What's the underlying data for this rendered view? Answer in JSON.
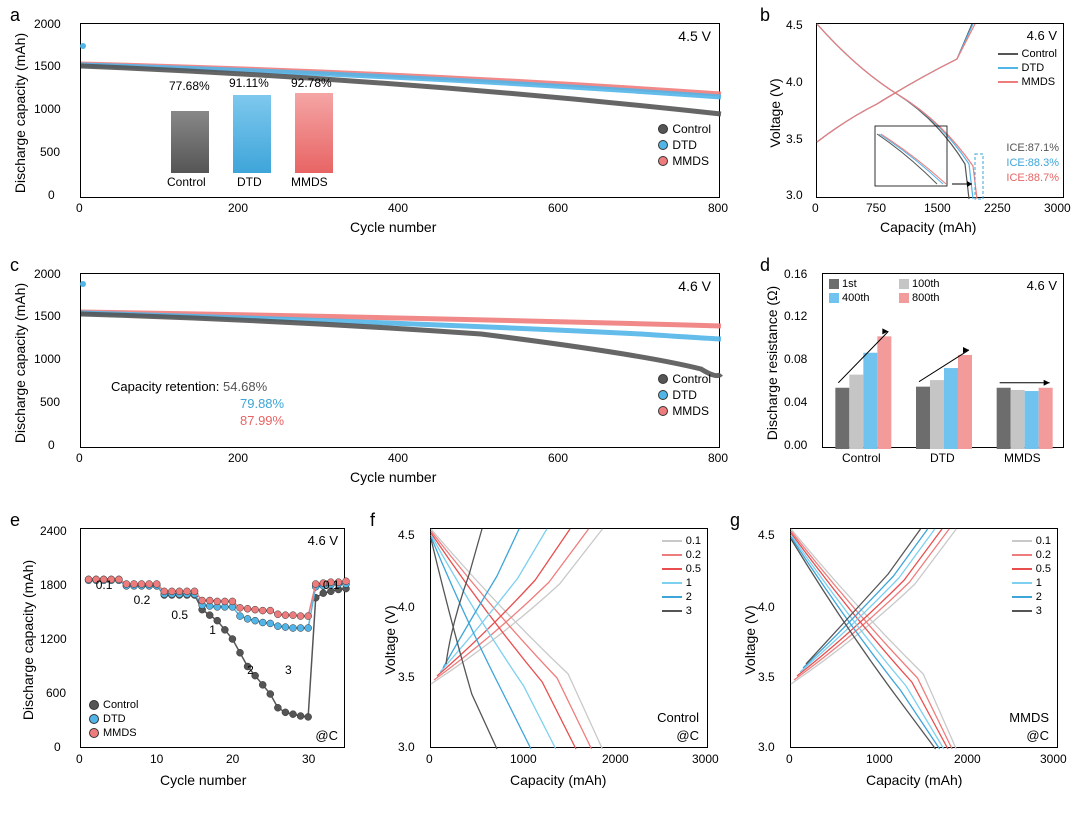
{
  "colors": {
    "control": "#555555",
    "dtd": "#52b5e8",
    "mmds": "#ef7c7c",
    "gray_bar": "#6d6d6d",
    "lightgray_bar": "#c5c5c5",
    "blue_bar": "#6fc3ee",
    "pink_bar": "#f39a9a",
    "axis": "#000000",
    "grid": "#e0e0e0",
    "bg": "#ffffff"
  },
  "panel_a": {
    "tag": "a",
    "ylabel": "Discharge capacity (mAh)",
    "xlabel": "Cycle number",
    "voltage_label": "4.5 V",
    "xlim": [
      0,
      800
    ],
    "ylim": [
      0,
      2000
    ],
    "xticks": [
      0,
      200,
      400,
      600,
      800
    ],
    "yticks": [
      0,
      500,
      1000,
      1500,
      2000
    ],
    "series": {
      "control_start": 1550,
      "control_end": 1205,
      "dtd_start": 1550,
      "dtd_end": 1420,
      "dtd_peak0": 1750,
      "mmds_start": 1550,
      "mmds_end": 1450
    },
    "inset_bars": {
      "categories": [
        "Control",
        "DTD",
        "MMDS"
      ],
      "values": [
        "77.68%",
        "91.11%",
        "92.78%"
      ],
      "heights": [
        77.68,
        91.11,
        92.78
      ],
      "colors": [
        "#6d6d6d",
        "#52b5e8",
        "#ef7c7c"
      ]
    },
    "legend": [
      "Control",
      "DTD",
      "MMDS"
    ]
  },
  "panel_b": {
    "tag": "b",
    "ylabel": "Voltage (V)",
    "xlabel": "Capacity (mAh)",
    "voltage_label": "4.6 V",
    "xlim": [
      0,
      3000
    ],
    "ylim": [
      3.0,
      4.5
    ],
    "xticks": [
      0,
      750,
      1500,
      2250,
      3000
    ],
    "yticks": [
      "3.0",
      "3.5",
      "4.0",
      "4.5"
    ],
    "legend": [
      "Control",
      "DTD",
      "MMDS"
    ],
    "ice": {
      "control": "ICE:87.1%",
      "dtd": "ICE:88.3%",
      "mmds": "ICE:88.7%"
    }
  },
  "panel_c": {
    "tag": "c",
    "ylabel": "Discharge capacity (mAh)",
    "xlabel": "Cycle number",
    "voltage_label": "4.6 V",
    "xlim": [
      0,
      800
    ],
    "ylim": [
      0,
      2000
    ],
    "xticks": [
      0,
      200,
      400,
      600,
      800
    ],
    "yticks": [
      0,
      500,
      1000,
      1500,
      2000
    ],
    "series": {
      "control_start": 1550,
      "control_end": 850,
      "control_mid": 1350,
      "dtd_start": 1560,
      "dtd_end": 1260,
      "dtd_peak0": 1900,
      "mmds_start": 1560,
      "mmds_end": 1400
    },
    "retention_label": "Capacity retention:",
    "retention": {
      "control": "54.68%",
      "dtd": "79.88%",
      "mmds": "87.99%"
    },
    "legend": [
      "Control",
      "DTD",
      "MMDS"
    ]
  },
  "panel_d": {
    "tag": "d",
    "ylabel": "Discharge resistance (Ω)",
    "voltage_label": "4.6 V",
    "categories": [
      "Control",
      "DTD",
      "MMDS"
    ],
    "groups": [
      "1st",
      "100th",
      "400th",
      "800th"
    ],
    "group_colors": [
      "#6d6d6d",
      "#c5c5c5",
      "#6fc3ee",
      "#f39a9a"
    ],
    "ylim": [
      0,
      0.16
    ],
    "yticks": [
      "0.00",
      "0.04",
      "0.08",
      "0.12",
      "0.16"
    ],
    "data": {
      "Control": [
        0.056,
        0.068,
        0.088,
        0.103
      ],
      "DTD": [
        0.057,
        0.063,
        0.074,
        0.086
      ],
      "MMDS": [
        0.056,
        0.054,
        0.053,
        0.056
      ]
    }
  },
  "panel_e": {
    "tag": "e",
    "ylabel": "Discharge capacity (mAh)",
    "xlabel": "Cycle number",
    "voltage_label": "4.6 V",
    "atC_label": "@C",
    "xlim": [
      0,
      35
    ],
    "ylim": [
      0,
      2400
    ],
    "xticks": [
      0,
      10,
      20,
      30
    ],
    "yticks": [
      0,
      600,
      1200,
      1800,
      2400
    ],
    "rate_labels": [
      "0.1",
      "0.2",
      "0.5",
      "1",
      "2",
      "3",
      "0.1"
    ],
    "rate_positions": [
      3,
      8,
      13,
      18,
      23,
      28,
      33
    ],
    "series": {
      "control": [
        1850,
        1850,
        1850,
        1850,
        1850,
        1780,
        1780,
        1780,
        1780,
        1780,
        1680,
        1680,
        1680,
        1680,
        1680,
        1520,
        1460,
        1400,
        1300,
        1200,
        1050,
        900,
        800,
        700,
        600,
        450,
        400,
        380,
        360,
        350,
        1650,
        1700,
        1720,
        1740,
        1750
      ],
      "dtd": [
        1840,
        1840,
        1840,
        1840,
        1840,
        1780,
        1780,
        1780,
        1780,
        1780,
        1690,
        1690,
        1690,
        1690,
        1690,
        1570,
        1560,
        1550,
        1550,
        1550,
        1450,
        1420,
        1400,
        1380,
        1370,
        1340,
        1330,
        1320,
        1320,
        1320,
        1770,
        1780,
        1790,
        1800,
        1800
      ],
      "mmds": [
        1850,
        1850,
        1850,
        1850,
        1850,
        1800,
        1800,
        1800,
        1800,
        1800,
        1720,
        1720,
        1720,
        1720,
        1720,
        1620,
        1620,
        1610,
        1610,
        1610,
        1540,
        1530,
        1520,
        1510,
        1510,
        1470,
        1460,
        1460,
        1450,
        1450,
        1800,
        1810,
        1820,
        1820,
        1830
      ]
    },
    "legend": [
      "Control",
      "DTD",
      "MMDS"
    ]
  },
  "panel_f": {
    "tag": "f",
    "ylabel": "Voltage (V)",
    "xlabel": "Capacity (mAh)",
    "series_label": "Control",
    "atC_label": "@C",
    "xlim": [
      0,
      3000
    ],
    "ylim": [
      3.0,
      4.5
    ],
    "xticks": [
      0,
      1000,
      2000,
      3000
    ],
    "yticks": [
      "3.0",
      "3.5",
      "4.0",
      "4.5"
    ],
    "rates": [
      "0.1",
      "0.2",
      "0.5",
      "1",
      "2",
      "3"
    ],
    "rate_colors": [
      "#c9c9c9",
      "#ef7c7c",
      "#e84e4e",
      "#7dd0f0",
      "#3ea5d9",
      "#555555"
    ]
  },
  "panel_g": {
    "tag": "g",
    "ylabel": "Voltage (V)",
    "xlabel": "Capacity (mAh)",
    "series_label": "MMDS",
    "atC_label": "@C",
    "xlim": [
      0,
      3000
    ],
    "ylim": [
      3.0,
      4.5
    ],
    "xticks": [
      0,
      1000,
      2000,
      3000
    ],
    "yticks": [
      "3.0",
      "3.5",
      "4.0",
      "4.5"
    ],
    "rates": [
      "0.1",
      "0.2",
      "0.5",
      "1",
      "2",
      "3"
    ],
    "rate_colors": [
      "#c9c9c9",
      "#ef7c7c",
      "#e84e4e",
      "#7dd0f0",
      "#3ea5d9",
      "#555555"
    ]
  }
}
